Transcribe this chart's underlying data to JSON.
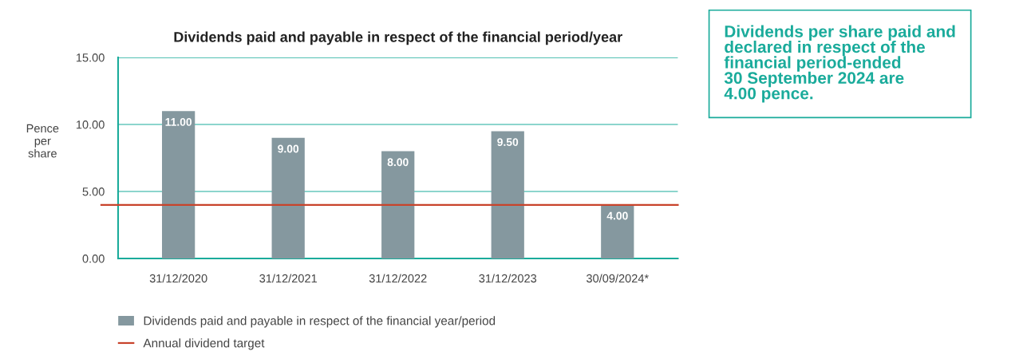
{
  "chart_data": {
    "type": "bar",
    "title": "Dividends paid and payable in respect of the financial period/year",
    "ylabel": "Pence\nper\nshare",
    "categories": [
      "31/12/2020",
      "31/12/2021",
      "31/12/2022",
      "31/12/2023",
      "30/09/2024*"
    ],
    "series": [
      {
        "name": "Dividends paid and payable in respect of the financial year/period",
        "color": "#85989f",
        "values": [
          11.0,
          9.0,
          8.0,
          9.5,
          4.0
        ],
        "value_labels": [
          "11.00",
          "9.00",
          "8.00",
          "9.50",
          "4.00"
        ]
      }
    ],
    "ylim": [
      0,
      15
    ],
    "yticks": [
      {
        "value": 0,
        "label": "0.00"
      },
      {
        "value": 5,
        "label": "5.00"
      },
      {
        "value": 10,
        "label": "10.00"
      },
      {
        "value": 15,
        "label": "15.00"
      }
    ],
    "grid": "y",
    "ref_lines": [
      {
        "axis": "y",
        "value": 4.0,
        "label": "Annual dividend target",
        "color": "#c8432b"
      }
    ],
    "legend": "bottom",
    "annotations": [
      "Dividends per share paid and\ndeclared in respect of the\nfinancial period-ended\n30 September 2024 are\n4.00 pence."
    ]
  }
}
